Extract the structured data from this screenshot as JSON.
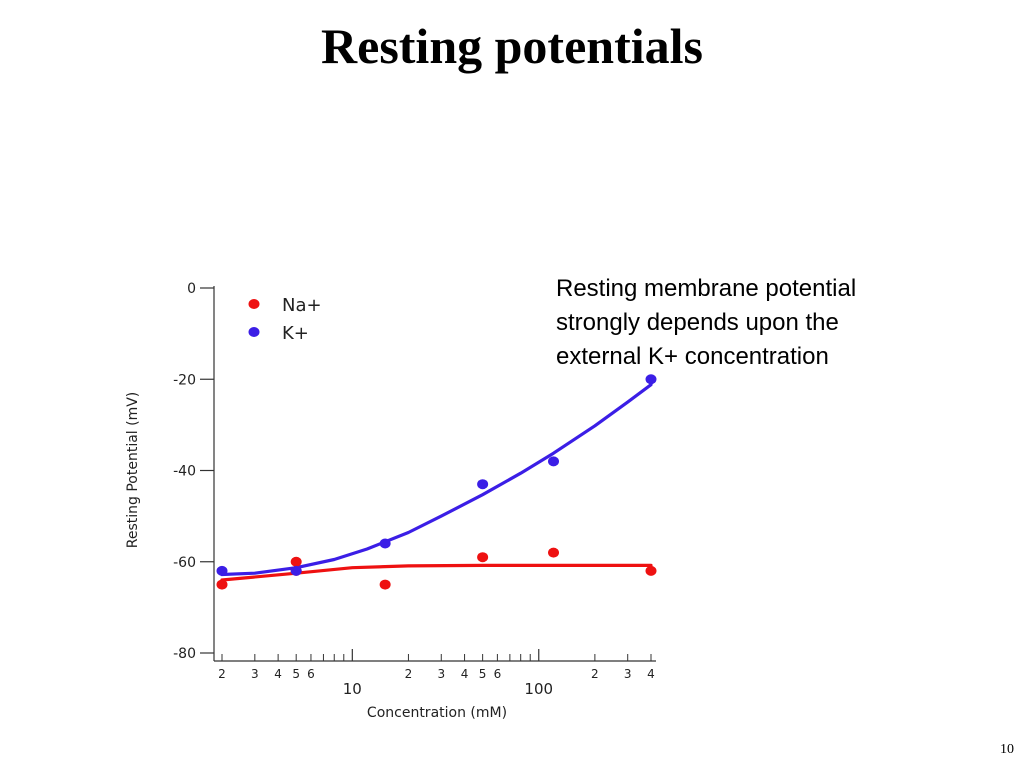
{
  "slide": {
    "title": "Resting potentials",
    "caption_lines": [
      "Resting membrane potential",
      "strongly depends upon the",
      "external K+ concentration"
    ],
    "page_number": "10"
  },
  "chart_data": {
    "type": "scatter",
    "title": "",
    "xlabel": "Concentration (mM)",
    "ylabel": "Resting Potential (mV)",
    "xscale": "log",
    "xlim": [
      2,
      400
    ],
    "ylim": [
      -80,
      0
    ],
    "grid": false,
    "legend_position": "top-left",
    "yticks": [
      0,
      -20,
      -40,
      -60,
      -80
    ],
    "major_xticks": [
      {
        "value": 10,
        "label": "10"
      },
      {
        "value": 100,
        "label": "100"
      }
    ],
    "minor_xticks": [
      {
        "value": 2,
        "label": "2"
      },
      {
        "value": 3,
        "label": "3"
      },
      {
        "value": 4,
        "label": "4"
      },
      {
        "value": 5,
        "label": "5"
      },
      {
        "value": 6,
        "label": "6"
      },
      {
        "value": 7,
        "label": ""
      },
      {
        "value": 8,
        "label": ""
      },
      {
        "value": 9,
        "label": ""
      },
      {
        "value": 20,
        "label": "2"
      },
      {
        "value": 30,
        "label": "3"
      },
      {
        "value": 40,
        "label": "4"
      },
      {
        "value": 50,
        "label": "5"
      },
      {
        "value": 60,
        "label": "6"
      },
      {
        "value": 70,
        "label": ""
      },
      {
        "value": 80,
        "label": ""
      },
      {
        "value": 90,
        "label": ""
      },
      {
        "value": 200,
        "label": "2"
      },
      {
        "value": 300,
        "label": "3"
      },
      {
        "value": 400,
        "label": "4"
      }
    ],
    "series": [
      {
        "name": "Na+",
        "color": "#ee1111",
        "points": [
          [
            2,
            -65
          ],
          [
            5,
            -60
          ],
          [
            5,
            -62
          ],
          [
            15,
            -65
          ],
          [
            50,
            -59
          ],
          [
            120,
            -58
          ],
          [
            400,
            -62
          ]
        ],
        "fit": [
          [
            2,
            -64
          ],
          [
            5,
            -62.5
          ],
          [
            10,
            -61.3
          ],
          [
            20,
            -60.9
          ],
          [
            50,
            -60.8
          ],
          [
            100,
            -60.8
          ],
          [
            200,
            -60.8
          ],
          [
            400,
            -60.8
          ]
        ]
      },
      {
        "name": "K+",
        "color": "#3b1ee6",
        "points": [
          [
            2,
            -62
          ],
          [
            5,
            -62
          ],
          [
            15,
            -56
          ],
          [
            50,
            -43
          ],
          [
            120,
            -38
          ],
          [
            400,
            -20
          ]
        ],
        "fit": [
          [
            2,
            -62.8
          ],
          [
            3,
            -62.5
          ],
          [
            5,
            -61.3
          ],
          [
            8,
            -59.5
          ],
          [
            12,
            -57.2
          ],
          [
            20,
            -53.6
          ],
          [
            30,
            -50
          ],
          [
            50,
            -45.3
          ],
          [
            80,
            -40.6
          ],
          [
            120,
            -36.2
          ],
          [
            200,
            -30.2
          ],
          [
            300,
            -25
          ],
          [
            400,
            -21.2
          ]
        ]
      }
    ]
  }
}
